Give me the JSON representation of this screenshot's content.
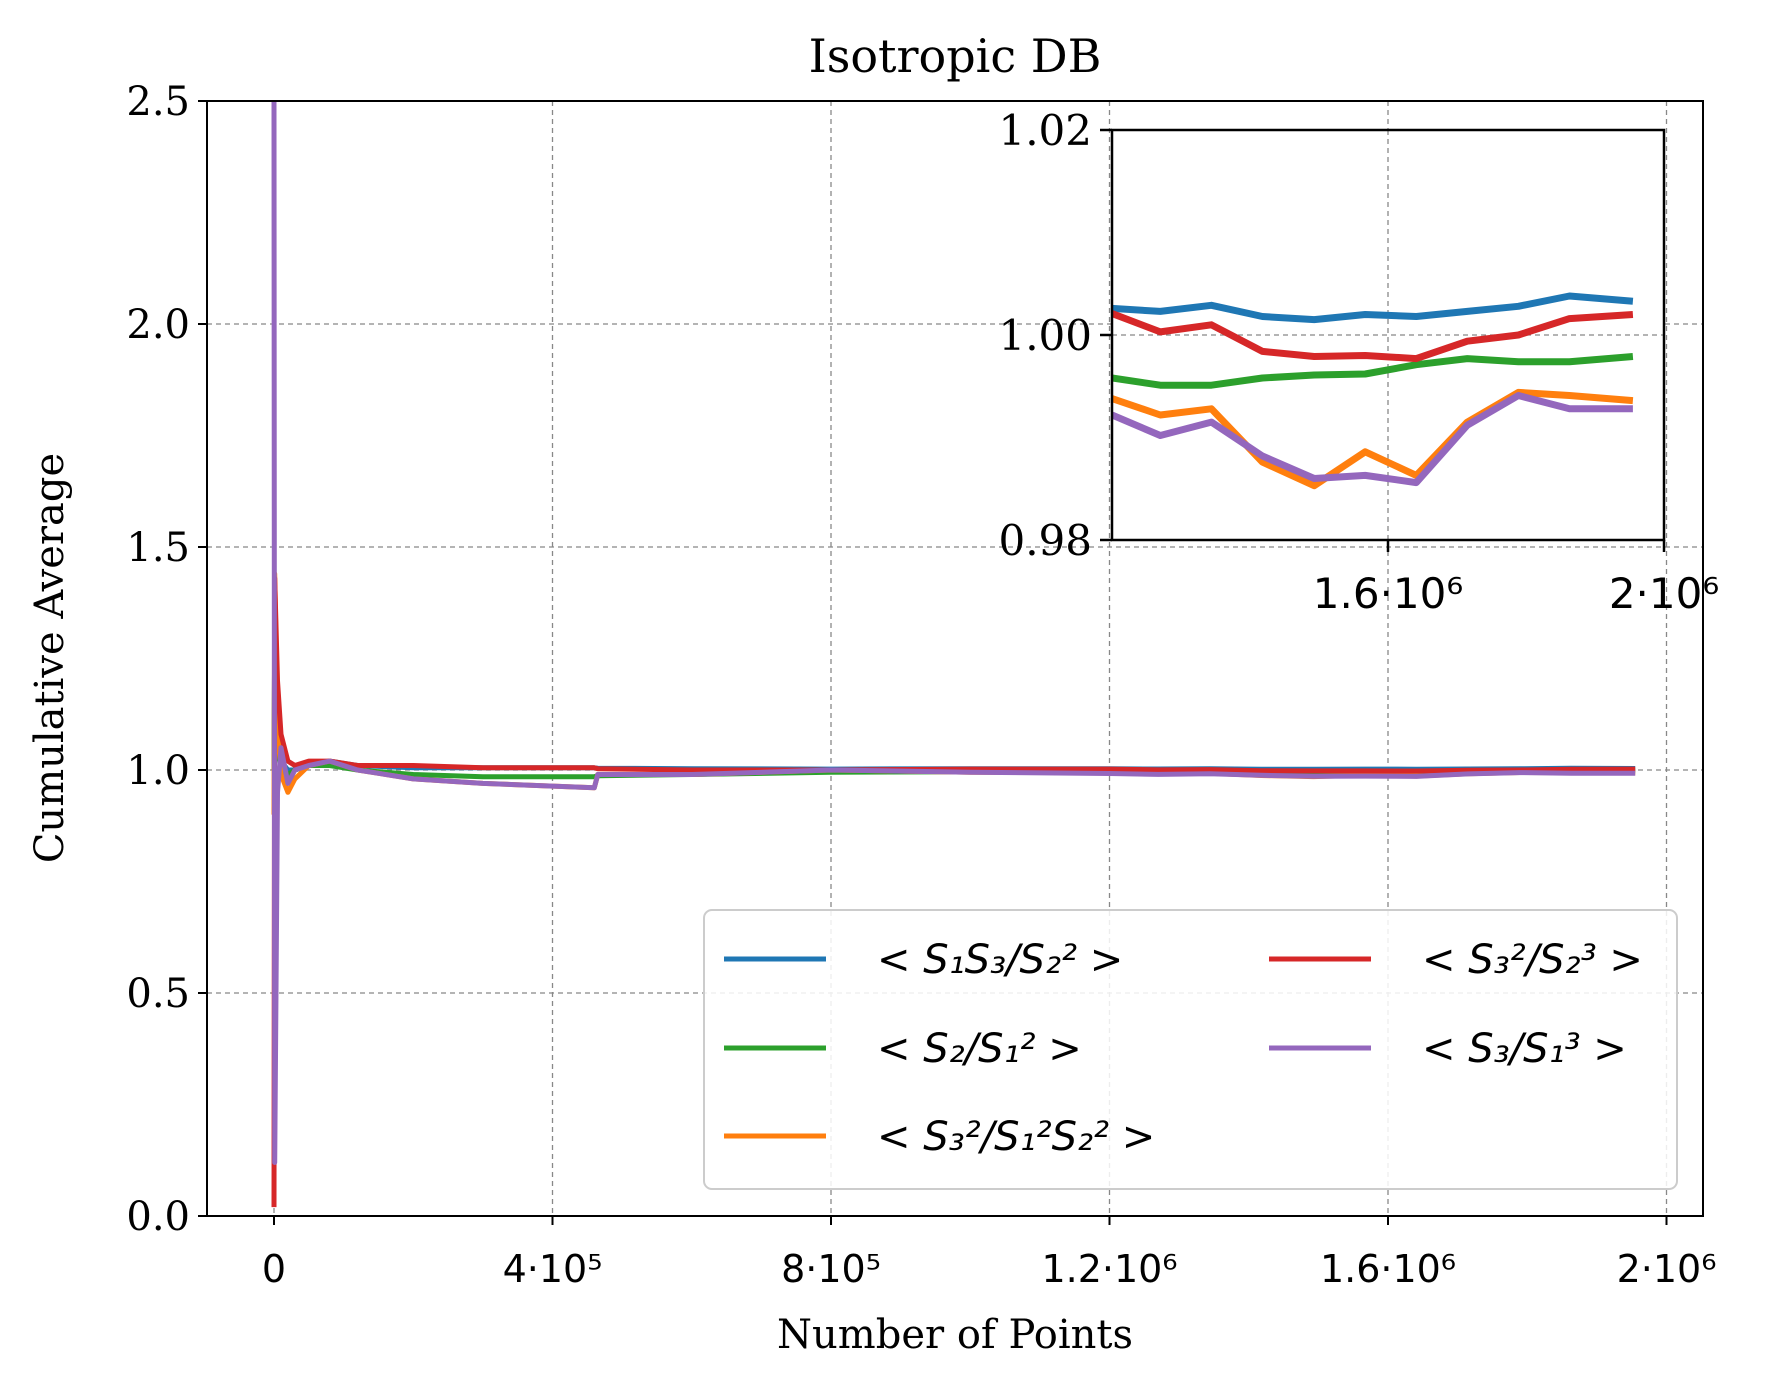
{
  "chart_data": {
    "type": "line",
    "title": "Isotropic DB",
    "xlabel": "Number of Points",
    "ylabel": "Cumulative Average",
    "xlim": [
      -100000,
      2060000
    ],
    "ylim": [
      0,
      2.5
    ],
    "grid": true,
    "legend_placement": "lower-right",
    "x_ticks": [
      0,
      400000,
      800000,
      1200000,
      1600000,
      2000000
    ],
    "x_tick_labels": [
      "0",
      "4·10⁵",
      "8·10⁵",
      "1.2·10⁶",
      "1.6·10⁶",
      "2·10⁶"
    ],
    "y_ticks": [
      0,
      0.5,
      1.0,
      1.5,
      2.0,
      2.5
    ],
    "y_tick_labels": [
      "0.0",
      "0.5",
      "1.0",
      "1.5",
      "2.0",
      "2.5"
    ],
    "x": [
      0,
      1000,
      5000,
      10000,
      20000,
      30000,
      50000,
      80000,
      120000,
      200000,
      300000,
      460000,
      465000,
      600000,
      800000,
      1000000,
      1200000,
      1270000,
      1344000,
      1418000,
      1493000,
      1567000,
      1641000,
      1715000,
      1789000,
      1863000,
      1955000
    ],
    "series": [
      {
        "name": "< S₁S₃/S₂² >",
        "color": "#1f77b4",
        "values": [
          1.0,
          1.3,
          1.08,
          1.02,
          1.0,
          1.0,
          1.01,
          1.02,
          1.01,
          1.005,
          1.005,
          1.005,
          1.004,
          1.003,
          1.002,
          1.003,
          1.0026,
          1.0023,
          1.0029,
          1.0018,
          1.0015,
          1.002,
          1.0018,
          1.0023,
          1.0028,
          1.0038,
          1.0033
        ]
      },
      {
        "name": "< S₂/S₁² >",
        "color": "#2ca02c",
        "values": [
          1.0,
          1.3,
          1.05,
          1.0,
          0.99,
          1.0,
          1.01,
          1.01,
          1.0,
          0.99,
          0.985,
          0.985,
          0.987,
          0.99,
          0.995,
          0.996,
          0.9958,
          0.9951,
          0.9951,
          0.9958,
          0.9961,
          0.9962,
          0.9971,
          0.9977,
          0.9974,
          0.9974,
          0.9979
        ]
      },
      {
        "name": "< S₃²/S₁²S₂² >",
        "color": "#ff7f0e",
        "values": [
          0.9,
          1.44,
          1.1,
          0.99,
          0.95,
          0.98,
          1.01,
          1.02,
          1.0,
          0.98,
          0.97,
          0.96,
          0.99,
          0.99,
          1.0,
          0.995,
          0.9938,
          0.9922,
          0.9928,
          0.9876,
          0.9853,
          0.9886,
          0.9863,
          0.9915,
          0.9944,
          0.9941,
          0.9936
        ]
      },
      {
        "name": "< S₃²/S₂³ >",
        "color": "#d62728",
        "values": [
          0.02,
          1.43,
          1.2,
          1.08,
          1.02,
          1.01,
          1.02,
          1.02,
          1.01,
          1.01,
          1.005,
          1.005,
          1.003,
          1.0,
          1.0,
          1.002,
          1.0021,
          1.0003,
          1.001,
          0.9984,
          0.9979,
          0.998,
          0.9977,
          0.9994,
          1.0,
          1.0016,
          1.002
        ]
      },
      {
        "name": "< S₃/S₁³ >",
        "color": "#9467bd",
        "values": [
          2.5,
          0.12,
          0.95,
          1.05,
          0.97,
          1.0,
          1.01,
          1.02,
          1.0,
          0.98,
          0.97,
          0.96,
          0.99,
          0.99,
          1.0,
          0.995,
          0.9922,
          0.9902,
          0.9915,
          0.9882,
          0.986,
          0.9863,
          0.9856,
          0.9912,
          0.9941,
          0.9928,
          0.9928
        ]
      }
    ],
    "inset": {
      "xlim": [
        1200000,
        2000000
      ],
      "ylim": [
        0.98,
        1.02
      ],
      "x_ticks": [
        1600000,
        2000000
      ],
      "x_tick_labels": [
        "1.6·10⁶",
        "2·10⁶"
      ],
      "y_ticks": [
        0.98,
        1.0,
        1.02
      ],
      "y_tick_labels": [
        "0.98",
        "1.00",
        "1.02"
      ]
    }
  }
}
